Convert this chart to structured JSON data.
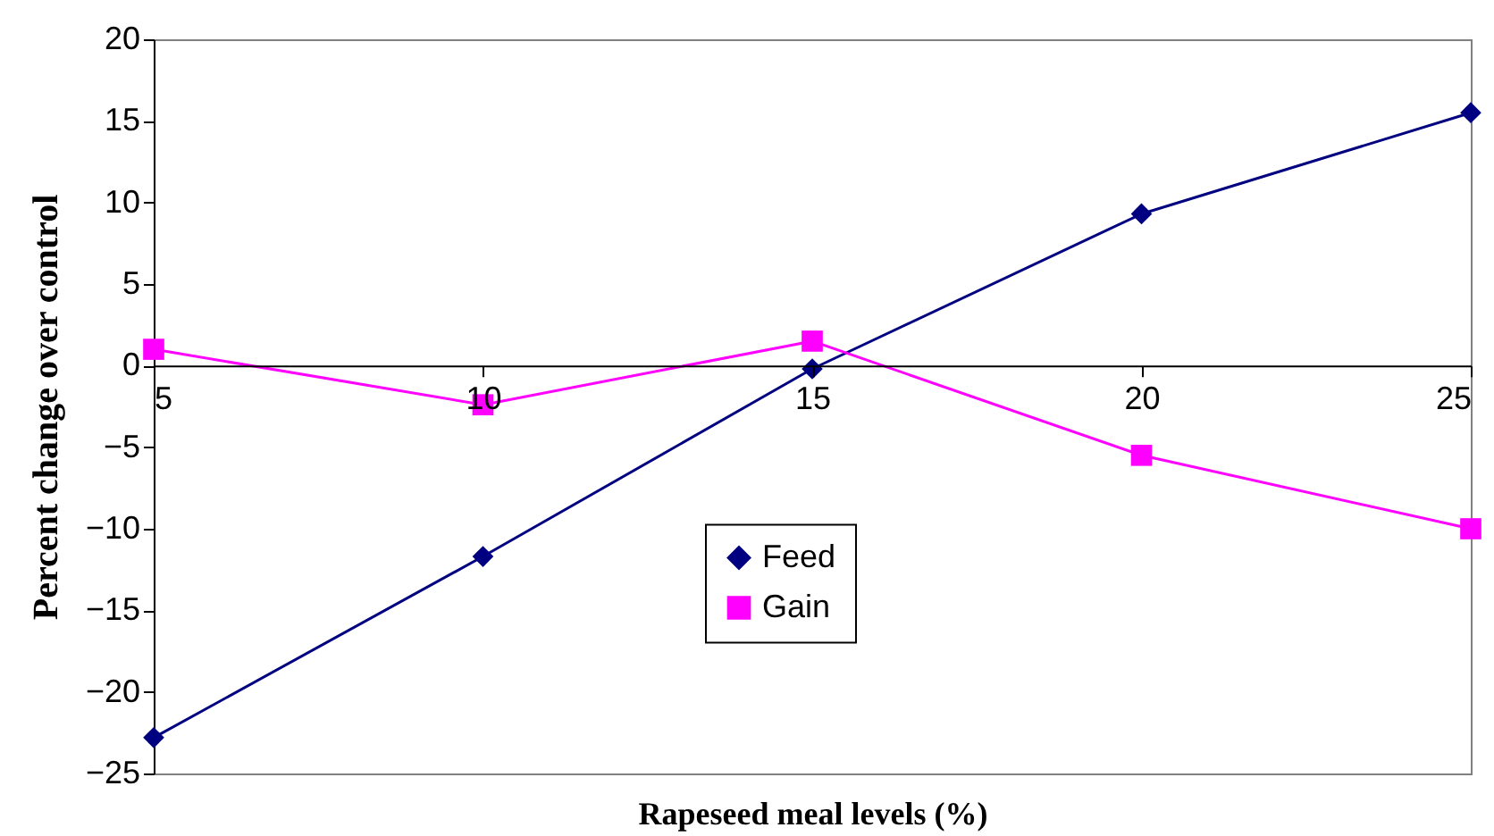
{
  "chart_data": {
    "type": "line",
    "xlabel": "Rapeseed meal levels (%)",
    "ylabel": "Percent change over control",
    "x": [
      5,
      10,
      15,
      20,
      25
    ],
    "xlim": [
      5,
      25
    ],
    "xticks": [
      5,
      10,
      15,
      20,
      25
    ],
    "ylim": [
      -25,
      20
    ],
    "yticks": [
      -25,
      -20,
      -15,
      -10,
      -5,
      0,
      5,
      10,
      15,
      20
    ],
    "series": [
      {
        "name": "Feed",
        "color": "#000080",
        "marker": "diamond",
        "values": [
          -22.8,
          -11.7,
          -0.2,
          9.3,
          15.5
        ]
      },
      {
        "name": "Gain",
        "color": "#ff00ff",
        "marker": "square",
        "values": [
          1.0,
          -2.4,
          1.5,
          -5.5,
          -10.0
        ]
      }
    ],
    "legend": "bottom",
    "grid": false
  }
}
